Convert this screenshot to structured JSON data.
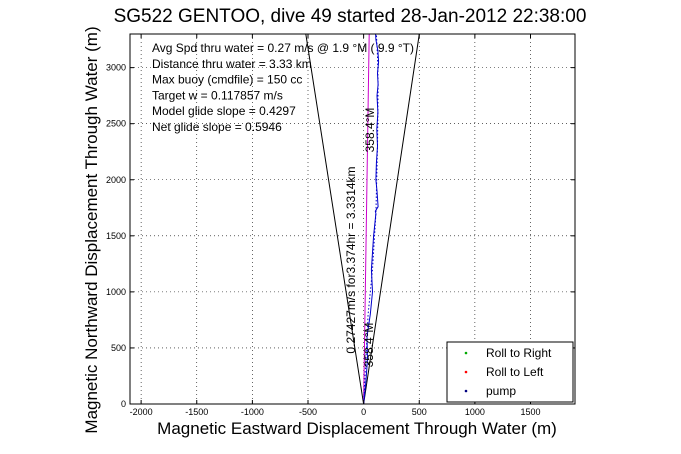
{
  "chart_data": {
    "type": "line",
    "title": "SG522 GENTOO, dive 49 started 28-Jan-2012 22:38:00",
    "xlabel": "Magnetic Eastward Displacement Through Water (m)",
    "ylabel": "Magnetic Northward Displacement Through Water (m)",
    "xlim": [
      -2100,
      1900
    ],
    "ylim": [
      0,
      3300
    ],
    "xticks": [
      -2000,
      -1500,
      -1000,
      -500,
      0,
      500,
      1000,
      1500
    ],
    "xtick_labels": [
      "-2000",
      "-1500",
      "-1000",
      "-500",
      "0",
      "500",
      "1000",
      "1500"
    ],
    "yticks": [
      0,
      500,
      1000,
      1500,
      2000,
      2500,
      3000
    ],
    "ytick_labels": [
      "0",
      "500",
      "1000",
      "1500",
      "2000",
      "2500",
      "3000"
    ],
    "grid": true,
    "annotations": [
      "Avg Spd thru water =  0.27 m/s @    1.9 °M (  9.9 °T)",
      "Distance thru water = 3.33 km",
      "Max buoy (cmdfile) = 150 cc",
      "Target w = 0.117857 m/s",
      "Model glide slope = 0.4297",
      "Net glide slope = 0.5946"
    ],
    "rotated_annotations": [
      "358.4°M",
      "0.27427m/s for3.374hr = 3.3314km",
      "358.4°M"
    ],
    "legend": {
      "position": "bottom-right",
      "entries": [
        {
          "label": "Roll to Right",
          "color": "#00aa00"
        },
        {
          "label": "Roll to Left",
          "color": "#ff0000"
        },
        {
          "label": "pump",
          "color": "#000080"
        }
      ]
    },
    "series": [
      {
        "style": "solid",
        "color": "#000000",
        "x": [
          -520,
          0,
          500
        ],
        "y": [
          3300,
          0,
          3300
        ]
      },
      {
        "style": "solid",
        "color": "#cc00cc",
        "x": [
          0,
          50
        ],
        "y": [
          0,
          3300
        ]
      },
      {
        "style": "solid",
        "color": "#0000cc",
        "x": [
          0,
          20,
          35,
          30,
          60,
          80,
          70,
          90,
          110,
          105,
          130,
          120,
          110,
          115,
          125,
          118,
          128,
          120,
          130,
          125,
          135,
          128,
          110,
          108
        ],
        "y": [
          0,
          200,
          400,
          600,
          800,
          1000,
          1200,
          1500,
          1700,
          1720,
          1760,
          1900,
          2000,
          2150,
          2300,
          2450,
          2600,
          2750,
          2850,
          2950,
          3050,
          3150,
          3250,
          3300
        ]
      },
      {
        "style": "dotted",
        "color": "#0000cc",
        "x": [
          0,
          20,
          40,
          80,
          110,
          125,
          130,
          125,
          115
        ],
        "y": [
          0,
          400,
          800,
          1200,
          1700,
          2300,
          2850,
          3100,
          3300
        ]
      }
    ]
  }
}
